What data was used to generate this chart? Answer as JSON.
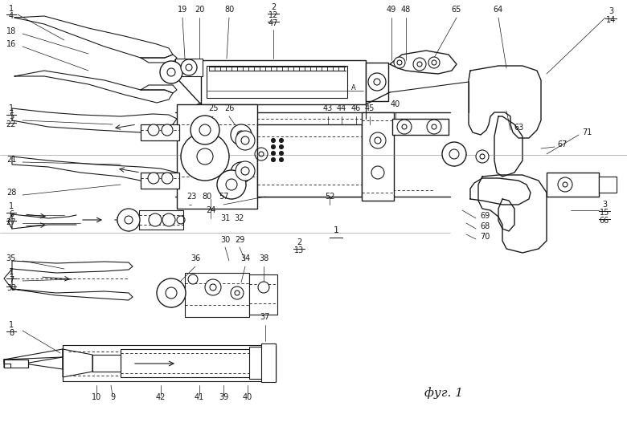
{
  "bg_color": "#ffffff",
  "line_color": "#1a1a1a",
  "fig_width": 7.8,
  "fig_height": 5.52,
  "dpi": 100,
  "caption": "фуг. 1"
}
